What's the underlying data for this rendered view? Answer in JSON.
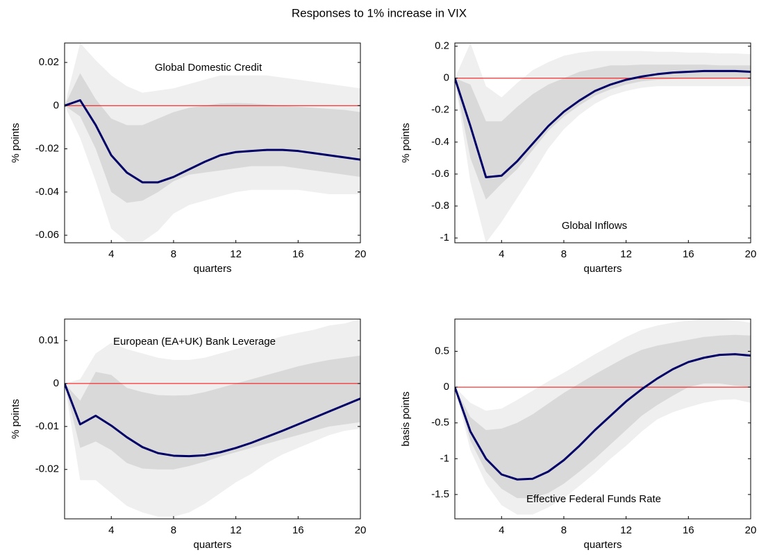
{
  "title": "Responses to 1% increase in VIX",
  "chart_data": [
    {
      "type": "line",
      "annotation": "Global Domestic Credit",
      "xlabel": "quarters",
      "ylabel": "% points",
      "x": [
        1,
        2,
        3,
        4,
        5,
        6,
        7,
        8,
        9,
        10,
        11,
        12,
        13,
        14,
        15,
        16,
        17,
        18,
        19,
        20
      ],
      "xlim": [
        1,
        20
      ],
      "xticks": [
        4,
        8,
        12,
        16,
        20
      ],
      "ylim": [
        -0.0635,
        0.029
      ],
      "yticks": [
        0.02,
        0,
        -0.02,
        -0.04,
        -0.06
      ],
      "reference_line": {
        "value": 0,
        "color": "#ff0000"
      },
      "bands": [
        {
          "color": "#efefef",
          "lower": [
            0,
            -0.015,
            -0.035,
            -0.057,
            -0.063,
            -0.063,
            -0.058,
            -0.05,
            -0.046,
            -0.044,
            -0.042,
            -0.04,
            -0.039,
            -0.039,
            -0.039,
            -0.039,
            -0.04,
            -0.041,
            -0.041,
            -0.041
          ],
          "upper": [
            0,
            0.029,
            0.021,
            0.014,
            0.009,
            0.006,
            0.007,
            0.008,
            0.01,
            0.012,
            0.014,
            0.014,
            0.014,
            0.014,
            0.013,
            0.012,
            0.011,
            0.01,
            0.009,
            0.008
          ]
        },
        {
          "color": "#d9d9d9",
          "lower": [
            0,
            -0.005,
            -0.02,
            -0.04,
            -0.045,
            -0.044,
            -0.04,
            -0.035,
            -0.032,
            -0.031,
            -0.03,
            -0.029,
            -0.028,
            -0.028,
            -0.028,
            -0.029,
            -0.03,
            -0.031,
            -0.032,
            -0.033
          ],
          "upper": [
            0,
            0.015,
            0.003,
            -0.006,
            -0.009,
            -0.009,
            -0.006,
            -0.003,
            -0.001,
            0,
            0.001,
            0.0012,
            0.001,
            0.0005,
            0,
            -0.0005,
            -0.001,
            -0.0015,
            -0.002,
            -0.003
          ]
        }
      ],
      "series": [
        {
          "color": "#000066",
          "values": [
            0,
            0.0025,
            -0.009,
            -0.023,
            -0.031,
            -0.0355,
            -0.0355,
            -0.033,
            -0.0295,
            -0.026,
            -0.023,
            -0.0215,
            -0.021,
            -0.0205,
            -0.0205,
            -0.021,
            -0.022,
            -0.023,
            -0.024,
            -0.025
          ]
        }
      ]
    },
    {
      "type": "line",
      "annotation": "Global Inflows",
      "xlabel": "quarters",
      "ylabel": "% points",
      "x": [
        1,
        2,
        3,
        4,
        5,
        6,
        7,
        8,
        9,
        10,
        11,
        12,
        13,
        14,
        15,
        16,
        17,
        18,
        19,
        20
      ],
      "xlim": [
        1,
        20
      ],
      "xticks": [
        4,
        8,
        12,
        16,
        20
      ],
      "ylim": [
        -1.03,
        0.22
      ],
      "yticks": [
        0.2,
        0,
        -0.2,
        -0.4,
        -0.6,
        -0.8,
        -1
      ],
      "reference_line": {
        "value": 0,
        "color": "#ff0000"
      },
      "bands": [
        {
          "color": "#efefef",
          "lower": [
            0,
            -0.65,
            -1.03,
            -0.9,
            -0.75,
            -0.6,
            -0.44,
            -0.32,
            -0.23,
            -0.16,
            -0.11,
            -0.08,
            -0.06,
            -0.05,
            -0.05,
            -0.05,
            -0.05,
            -0.05,
            -0.05,
            -0.05
          ],
          "upper": [
            0,
            0.22,
            -0.05,
            -0.12,
            -0.03,
            0.05,
            0.1,
            0.14,
            0.16,
            0.17,
            0.17,
            0.17,
            0.17,
            0.165,
            0.165,
            0.16,
            0.16,
            0.155,
            0.155,
            0.15
          ]
        },
        {
          "color": "#d9d9d9",
          "lower": [
            0,
            -0.5,
            -0.76,
            -0.66,
            -0.57,
            -0.45,
            -0.33,
            -0.24,
            -0.17,
            -0.11,
            -0.07,
            -0.04,
            -0.02,
            -0.01,
            -0.005,
            0,
            0,
            0,
            0,
            0
          ],
          "upper": [
            0,
            -0.04,
            -0.27,
            -0.27,
            -0.18,
            -0.1,
            -0.04,
            0,
            0.04,
            0.06,
            0.08,
            0.08,
            0.085,
            0.085,
            0.085,
            0.085,
            0.085,
            0.08,
            0.08,
            0.08
          ]
        }
      ],
      "series": [
        {
          "color": "#000066",
          "values": [
            0,
            -0.3,
            -0.62,
            -0.61,
            -0.52,
            -0.41,
            -0.3,
            -0.21,
            -0.14,
            -0.08,
            -0.04,
            -0.01,
            0.01,
            0.025,
            0.035,
            0.04,
            0.045,
            0.045,
            0.045,
            0.04
          ]
        }
      ]
    },
    {
      "type": "line",
      "annotation": "European (EA+UK) Bank Leverage",
      "xlabel": "quarters",
      "ylabel": "% points",
      "x": [
        1,
        2,
        3,
        4,
        5,
        6,
        7,
        8,
        9,
        10,
        11,
        12,
        13,
        14,
        15,
        16,
        17,
        18,
        19,
        20
      ],
      "xlim": [
        1,
        20
      ],
      "xticks": [
        4,
        8,
        12,
        16,
        20
      ],
      "ylim": [
        -0.0315,
        0.015
      ],
      "yticks": [
        0.01,
        0,
        -0.01,
        -0.02
      ],
      "reference_line": {
        "value": 0,
        "color": "#ff0000"
      },
      "bands": [
        {
          "color": "#efefef",
          "lower": [
            0,
            -0.0225,
            -0.0225,
            -0.0255,
            -0.0285,
            -0.03,
            -0.031,
            -0.031,
            -0.03,
            -0.028,
            -0.0255,
            -0.023,
            -0.021,
            -0.0185,
            -0.0165,
            -0.015,
            -0.0135,
            -0.012,
            -0.011,
            -0.0105
          ],
          "upper": [
            0,
            0.001,
            0.007,
            0.0095,
            0.008,
            0.007,
            0.006,
            0.0055,
            0.0055,
            0.006,
            0.007,
            0.008,
            0.009,
            0.01,
            0.011,
            0.0118,
            0.0125,
            0.0135,
            0.014,
            0.015
          ]
        },
        {
          "color": "#d9d9d9",
          "lower": [
            0,
            -0.015,
            -0.0135,
            -0.0155,
            -0.0185,
            -0.0198,
            -0.02,
            -0.02,
            -0.0192,
            -0.0182,
            -0.017,
            -0.016,
            -0.015,
            -0.014,
            -0.013,
            -0.012,
            -0.011,
            -0.01,
            -0.0095,
            -0.009
          ],
          "upper": [
            0,
            -0.004,
            0.0027,
            0.002,
            -0.001,
            -0.002,
            -0.0027,
            -0.0028,
            -0.0027,
            -0.002,
            -0.001,
            0,
            0.001,
            0.002,
            0.003,
            0.004,
            0.0048,
            0.0055,
            0.006,
            0.0065
          ]
        }
      ],
      "series": [
        {
          "color": "#000066",
          "values": [
            0,
            -0.0095,
            -0.0075,
            -0.0098,
            -0.0125,
            -0.0148,
            -0.0162,
            -0.0168,
            -0.0169,
            -0.0167,
            -0.016,
            -0.015,
            -0.0138,
            -0.0124,
            -0.011,
            -0.0095,
            -0.008,
            -0.0065,
            -0.005,
            -0.0035
          ]
        }
      ]
    },
    {
      "type": "line",
      "annotation": "Effective Federal Funds Rate",
      "xlabel": "quarters",
      "ylabel": "basis points",
      "x": [
        1,
        2,
        3,
        4,
        5,
        6,
        7,
        8,
        9,
        10,
        11,
        12,
        13,
        14,
        15,
        16,
        17,
        18,
        19,
        20
      ],
      "xlim": [
        1,
        20
      ],
      "xticks": [
        4,
        8,
        12,
        16,
        20
      ],
      "ylim": [
        -1.84,
        0.95
      ],
      "yticks": [
        0.5,
        0,
        -0.5,
        -1,
        -1.5
      ],
      "reference_line": {
        "value": 0,
        "color": "#ff0000"
      },
      "bands": [
        {
          "color": "#efefef",
          "lower": [
            0,
            -0.88,
            -1.35,
            -1.65,
            -1.78,
            -1.78,
            -1.68,
            -1.55,
            -1.38,
            -1.2,
            -1.0,
            -0.82,
            -0.62,
            -0.45,
            -0.35,
            -0.28,
            -0.22,
            -0.18,
            -0.17,
            -0.22
          ],
          "upper": [
            0,
            -0.22,
            -0.33,
            -0.3,
            -0.18,
            -0.05,
            0.08,
            0.2,
            0.33,
            0.46,
            0.58,
            0.7,
            0.8,
            0.86,
            0.9,
            0.93,
            0.95,
            0.95,
            0.93,
            0.9
          ]
        },
        {
          "color": "#d9d9d9",
          "lower": [
            0,
            -0.75,
            -1.18,
            -1.42,
            -1.55,
            -1.55,
            -1.48,
            -1.35,
            -1.18,
            -1.0,
            -0.8,
            -0.6,
            -0.4,
            -0.25,
            -0.12,
            0,
            0.05,
            0.05,
            0.02,
            0
          ],
          "upper": [
            0,
            -0.42,
            -0.6,
            -0.58,
            -0.5,
            -0.38,
            -0.23,
            -0.08,
            0.05,
            0.18,
            0.3,
            0.42,
            0.52,
            0.58,
            0.62,
            0.66,
            0.7,
            0.72,
            0.73,
            0.72
          ]
        }
      ],
      "series": [
        {
          "color": "#000066",
          "values": [
            0,
            -0.62,
            -1.0,
            -1.22,
            -1.29,
            -1.28,
            -1.18,
            -1.02,
            -0.82,
            -0.6,
            -0.4,
            -0.2,
            -0.03,
            0.12,
            0.25,
            0.35,
            0.41,
            0.45,
            0.46,
            0.44
          ]
        }
      ]
    }
  ]
}
